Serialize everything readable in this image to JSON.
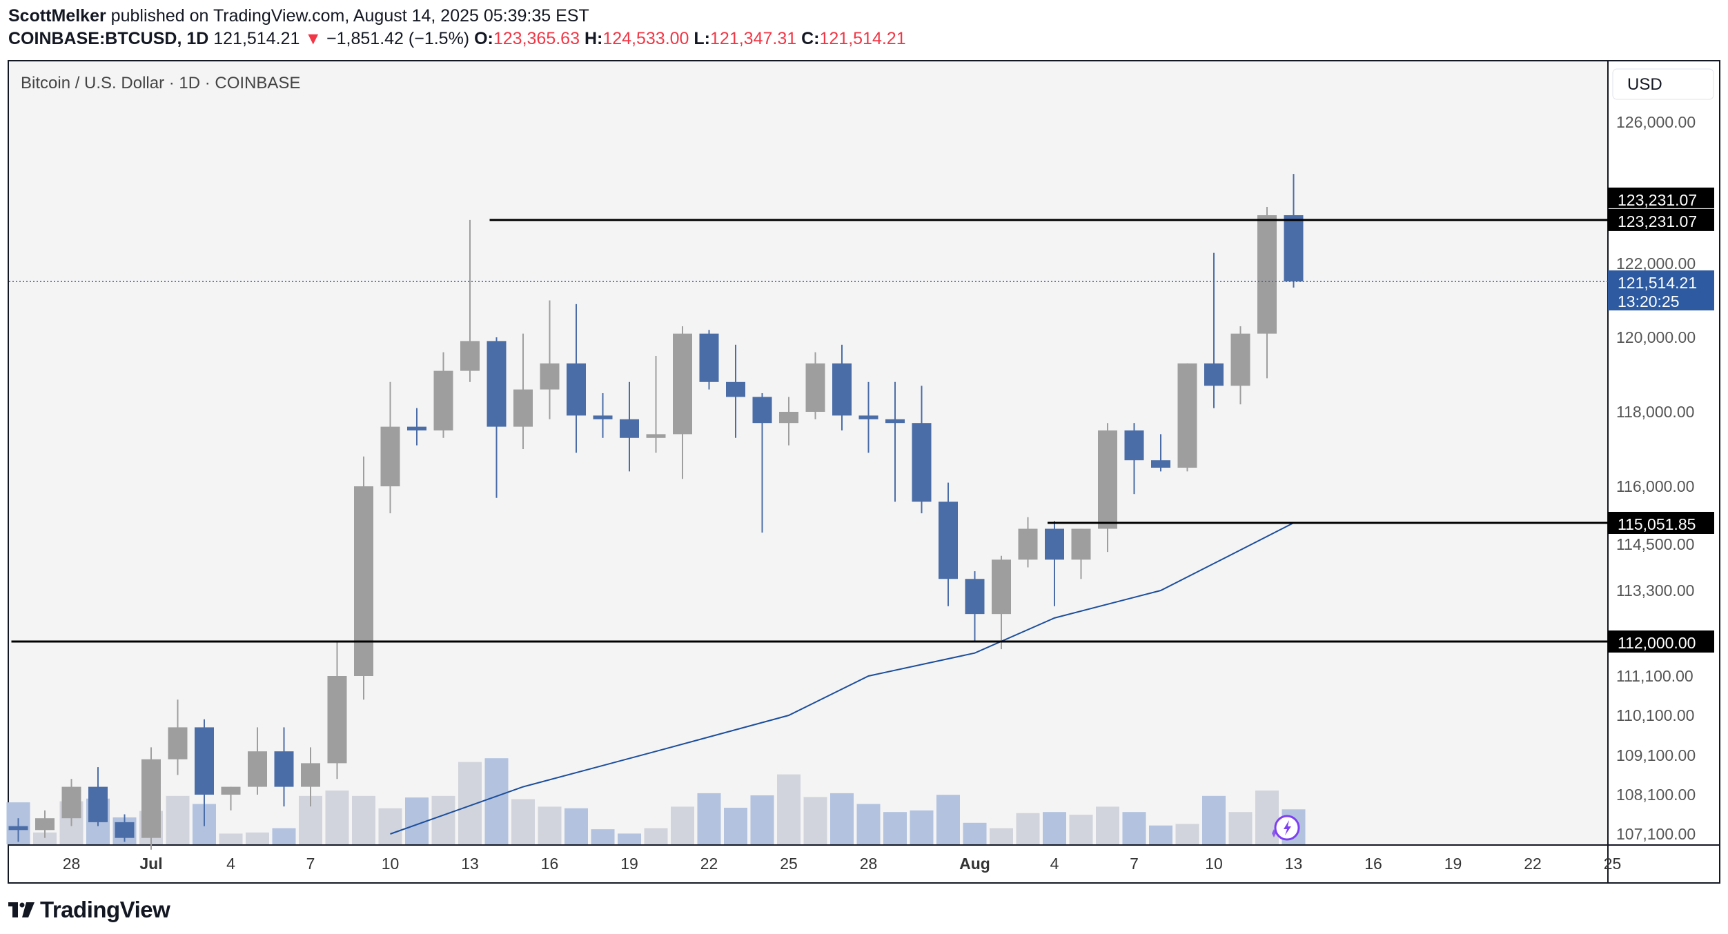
{
  "header": {
    "author": "ScottMelker",
    "published_text": "published on TradingView.com, August 14, 2025 05:39:35 EST",
    "symbol": "COINBASE:BTCUSD, 1D",
    "last_price": "121,514.21",
    "change_arrow": "▼",
    "change": "−1,851.42 (−1.5%)",
    "open_label": "O:",
    "open": "123,365.63",
    "high_label": "H:",
    "high": "124,533.00",
    "low_label": "L:",
    "low": "121,347.31",
    "close_label": "C:",
    "close": "121,514.21"
  },
  "chart_title": "Bitcoin / U.S. Dollar · 1D · COINBASE",
  "currency_button": "USD",
  "brand": "TradingView",
  "colors": {
    "up": "#9e9e9e",
    "down": "#4a6da7",
    "vol_up": "#d1d4dc",
    "vol_down": "#b2c2df",
    "ma": "#1c4e9c",
    "level": "#000000",
    "bg": "#f4f4f4",
    "price_tag": "#2d5aa0"
  },
  "chart_data": {
    "type": "candlestick",
    "title": "Bitcoin / U.S. Dollar · 1D · COINBASE",
    "y_scale": "custom-nonlinear",
    "y_ticks": [
      "126,000.00",
      "122,000.00",
      "120,000.00",
      "118,000.00",
      "116,000.00",
      "114,500.00",
      "113,300.00",
      "111,100.00",
      "110,100.00",
      "109,100.00",
      "108,100.00",
      "107,100.00"
    ],
    "x_ticks": [
      "28",
      "Jul",
      "4",
      "7",
      "10",
      "13",
      "16",
      "19",
      "22",
      "25",
      "28",
      "Aug",
      "4",
      "7",
      "10",
      "13",
      "16",
      "19",
      "22",
      "25"
    ],
    "levels": [
      {
        "label": "123,231.07",
        "value": 123231.07,
        "from": "2025-07-14"
      },
      {
        "label": "115,051.85",
        "value": 115051.85,
        "from": "2025-08-04"
      },
      {
        "label": "112,000.00",
        "value": 112000.0,
        "from": "2025-06-26"
      }
    ],
    "level_tag_extra": "123,231.07",
    "current_price": {
      "label": "121,514.21",
      "countdown": "13:20:25",
      "value": 121514.21
    },
    "candles": [
      {
        "d": "2025-06-26",
        "o": 107300,
        "h": 107500,
        "l": 106900,
        "c": 107200
      },
      {
        "d": "2025-06-27",
        "o": 107200,
        "h": 107700,
        "l": 107000,
        "c": 107500
      },
      {
        "d": "2025-06-28",
        "o": 107500,
        "h": 108500,
        "l": 107300,
        "c": 108300
      },
      {
        "d": "2025-06-29",
        "o": 108300,
        "h": 108800,
        "l": 107300,
        "c": 107400
      },
      {
        "d": "2025-06-30",
        "o": 107400,
        "h": 107600,
        "l": 106900,
        "c": 107000
      },
      {
        "d": "2025-07-01",
        "o": 107000,
        "h": 109300,
        "l": 106700,
        "c": 109000
      },
      {
        "d": "2025-07-02",
        "o": 109000,
        "h": 110500,
        "l": 108600,
        "c": 109800
      },
      {
        "d": "2025-07-03",
        "o": 109800,
        "h": 110000,
        "l": 107300,
        "c": 108100
      },
      {
        "d": "2025-07-04",
        "o": 108100,
        "h": 108300,
        "l": 107700,
        "c": 108300
      },
      {
        "d": "2025-07-05",
        "o": 108300,
        "h": 109800,
        "l": 108100,
        "c": 109200
      },
      {
        "d": "2025-07-06",
        "o": 109200,
        "h": 109800,
        "l": 107800,
        "c": 108300
      },
      {
        "d": "2025-07-07",
        "o": 108300,
        "h": 109300,
        "l": 107800,
        "c": 108900
      },
      {
        "d": "2025-07-08",
        "o": 108900,
        "h": 112000,
        "l": 108500,
        "c": 111100
      },
      {
        "d": "2025-07-09",
        "o": 111100,
        "h": 116800,
        "l": 110500,
        "c": 116000
      },
      {
        "d": "2025-07-10",
        "o": 116000,
        "h": 118800,
        "l": 115300,
        "c": 117600
      },
      {
        "d": "2025-07-11",
        "o": 117600,
        "h": 118100,
        "l": 117100,
        "c": 117500
      },
      {
        "d": "2025-07-12",
        "o": 117500,
        "h": 119600,
        "l": 117300,
        "c": 119100
      },
      {
        "d": "2025-07-13",
        "o": 119100,
        "h": 123231,
        "l": 118800,
        "c": 119900
      },
      {
        "d": "2025-07-14",
        "o": 119900,
        "h": 120000,
        "l": 115700,
        "c": 117600
      },
      {
        "d": "2025-07-15",
        "o": 117600,
        "h": 120100,
        "l": 117000,
        "c": 118600
      },
      {
        "d": "2025-07-16",
        "o": 118600,
        "h": 121000,
        "l": 117800,
        "c": 119300
      },
      {
        "d": "2025-07-17",
        "o": 119300,
        "h": 120900,
        "l": 116900,
        "c": 117900
      },
      {
        "d": "2025-07-18",
        "o": 117900,
        "h": 118500,
        "l": 117300,
        "c": 117800
      },
      {
        "d": "2025-07-19",
        "o": 117800,
        "h": 118800,
        "l": 116400,
        "c": 117300
      },
      {
        "d": "2025-07-20",
        "o": 117300,
        "h": 119500,
        "l": 116900,
        "c": 117400
      },
      {
        "d": "2025-07-21",
        "o": 117400,
        "h": 120300,
        "l": 116200,
        "c": 120100
      },
      {
        "d": "2025-07-22",
        "o": 120100,
        "h": 120200,
        "l": 118600,
        "c": 118800
      },
      {
        "d": "2025-07-23",
        "o": 118800,
        "h": 119800,
        "l": 117300,
        "c": 118400
      },
      {
        "d": "2025-07-24",
        "o": 118400,
        "h": 118500,
        "l": 114800,
        "c": 117700
      },
      {
        "d": "2025-07-25",
        "o": 117700,
        "h": 118400,
        "l": 117100,
        "c": 118000
      },
      {
        "d": "2025-07-26",
        "o": 118000,
        "h": 119600,
        "l": 117800,
        "c": 119300
      },
      {
        "d": "2025-07-27",
        "o": 119300,
        "h": 119800,
        "l": 117500,
        "c": 117900
      },
      {
        "d": "2025-07-28",
        "o": 117900,
        "h": 118800,
        "l": 116900,
        "c": 117800
      },
      {
        "d": "2025-07-29",
        "o": 117800,
        "h": 118800,
        "l": 115600,
        "c": 117700
      },
      {
        "d": "2025-07-30",
        "o": 117700,
        "h": 118700,
        "l": 115300,
        "c": 115600
      },
      {
        "d": "2025-07-31",
        "o": 115600,
        "h": 116100,
        "l": 112900,
        "c": 113600
      },
      {
        "d": "2025-08-01",
        "o": 113600,
        "h": 113800,
        "l": 112000,
        "c": 112700
      },
      {
        "d": "2025-08-02",
        "o": 112700,
        "h": 114200,
        "l": 111800,
        "c": 114100
      },
      {
        "d": "2025-08-03",
        "o": 114100,
        "h": 115200,
        "l": 113900,
        "c": 114900
      },
      {
        "d": "2025-08-04",
        "o": 114900,
        "h": 115100,
        "l": 112900,
        "c": 114100
      },
      {
        "d": "2025-08-05",
        "o": 114100,
        "h": 114900,
        "l": 113600,
        "c": 114900
      },
      {
        "d": "2025-08-06",
        "o": 114900,
        "h": 117700,
        "l": 114300,
        "c": 117500
      },
      {
        "d": "2025-08-07",
        "o": 117500,
        "h": 117700,
        "l": 115800,
        "c": 116700
      },
      {
        "d": "2025-08-08",
        "o": 116700,
        "h": 117400,
        "l": 116400,
        "c": 116500
      },
      {
        "d": "2025-08-09",
        "o": 116500,
        "h": 119300,
        "l": 116400,
        "c": 119300
      },
      {
        "d": "2025-08-10",
        "o": 119300,
        "h": 122300,
        "l": 118100,
        "c": 118700
      },
      {
        "d": "2025-08-11",
        "o": 118700,
        "h": 120300,
        "l": 118200,
        "c": 120100
      },
      {
        "d": "2025-08-12",
        "o": 120100,
        "h": 123600,
        "l": 118900,
        "c": 123366
      },
      {
        "d": "2025-08-13",
        "o": 123366,
        "h": 124533,
        "l": 121347,
        "c": 121514
      }
    ],
    "volume_relative": [
      0.78,
      0.22,
      0.8,
      0.85,
      0.5,
      0.62,
      0.9,
      0.75,
      0.2,
      0.22,
      0.3,
      0.9,
      1.0,
      0.9,
      0.67,
      0.87,
      0.9,
      1.53,
      1.6,
      0.84,
      0.7,
      0.67,
      0.28,
      0.2,
      0.3,
      0.7,
      0.95,
      0.68,
      0.91,
      1.3,
      0.88,
      0.95,
      0.75,
      0.6,
      0.63,
      0.92,
      0.4,
      0.3,
      0.58,
      0.6,
      0.55,
      0.7,
      0.6,
      0.35,
      0.38,
      0.9,
      0.6,
      1.0,
      0.65
    ],
    "moving_average": [
      {
        "d": "2025-07-10",
        "v": 107100
      },
      {
        "d": "2025-07-15",
        "v": 108300
      },
      {
        "d": "2025-07-20",
        "v": 109200
      },
      {
        "d": "2025-07-25",
        "v": 110100
      },
      {
        "d": "2025-07-28",
        "v": 111100
      },
      {
        "d": "2025-08-01",
        "v": 111700
      },
      {
        "d": "2025-08-04",
        "v": 112600
      },
      {
        "d": "2025-08-08",
        "v": 113300
      },
      {
        "d": "2025-08-10",
        "v": 114000
      },
      {
        "d": "2025-08-13",
        "v": 115051.85
      }
    ]
  }
}
